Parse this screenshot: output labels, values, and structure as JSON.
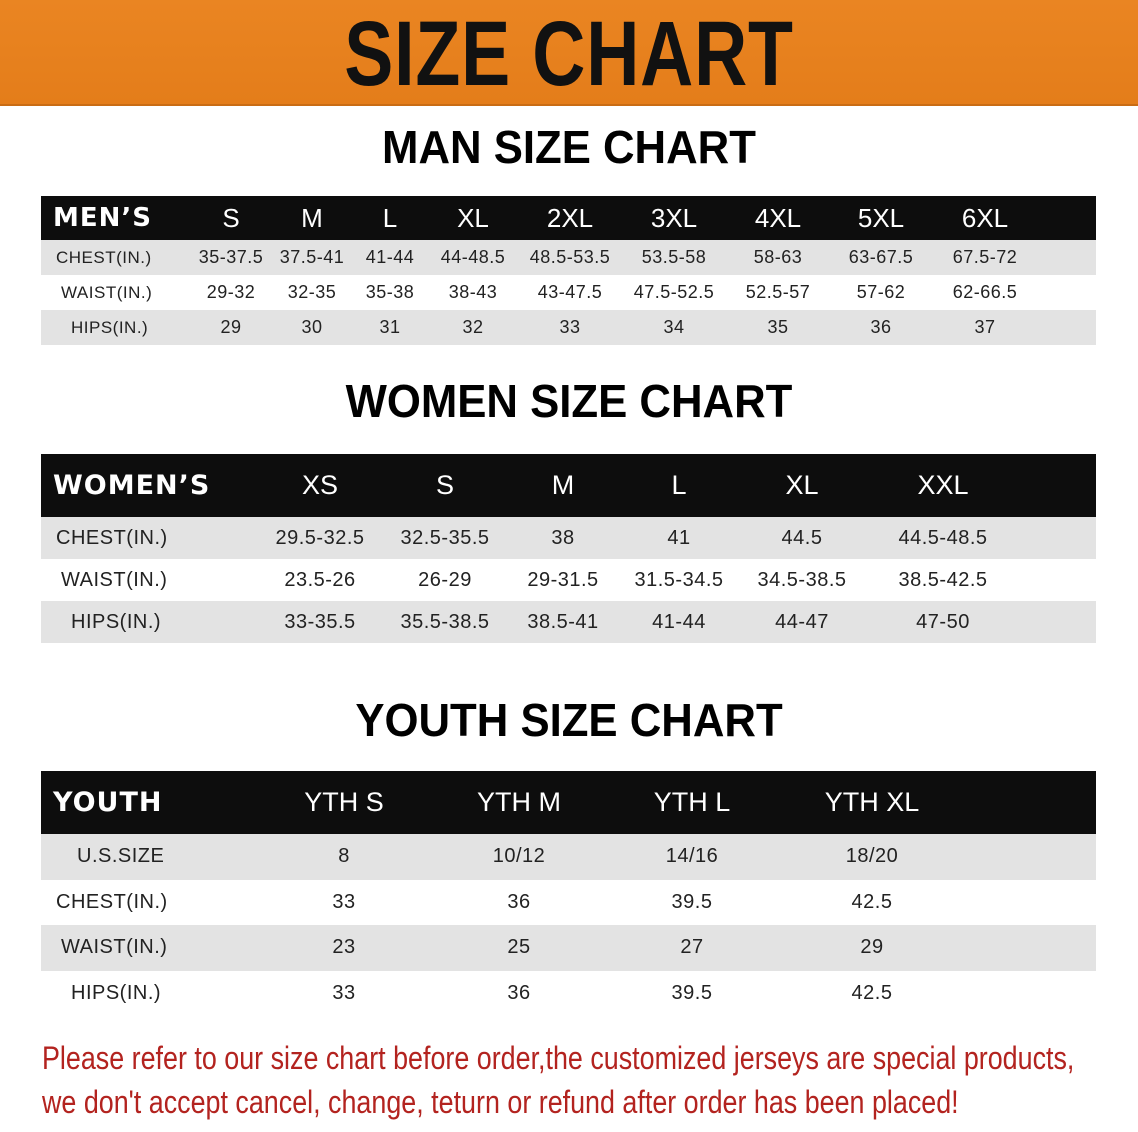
{
  "banner": {
    "title": "SIZE CHART",
    "color": "#E8801E"
  },
  "men": {
    "title": "MAN SIZE CHART",
    "header": [
      "MEN’S",
      "S",
      "M",
      "L",
      "XL",
      "2XL",
      "3XL",
      "4XL",
      "5XL",
      "6XL"
    ],
    "rows": [
      [
        "CHEST(IN.)",
        "35-37.5",
        "37.5-41",
        "41-44",
        "44-48.5",
        "48.5-53.5",
        "53.5-58",
        "58-63",
        "63-67.5",
        "67.5-72"
      ],
      [
        "WAIST(IN.)",
        "29-32",
        "32-35",
        "35-38",
        "38-43",
        "43-47.5",
        "47.5-52.5",
        "52.5-57",
        "57-62",
        "62-66.5"
      ],
      [
        "HIPS(IN.)",
        "29",
        "30",
        "31",
        "32",
        "33",
        "34",
        "35",
        "36",
        "37"
      ]
    ]
  },
  "women": {
    "title": "WOMEN SIZE CHART",
    "header": [
      "WOMEN’S",
      "XS",
      "S",
      "M",
      "L",
      "XL",
      "XXL"
    ],
    "rows": [
      [
        "CHEST(IN.)",
        "29.5-32.5",
        "32.5-35.5",
        "38",
        "41",
        "44.5",
        "44.5-48.5"
      ],
      [
        "WAIST(IN.)",
        "23.5-26",
        "26-29",
        "29-31.5",
        "31.5-34.5",
        "34.5-38.5",
        "38.5-42.5"
      ],
      [
        "HIPS(IN.)",
        "33-35.5",
        "35.5-38.5",
        "38.5-41",
        "41-44",
        "44-47",
        "47-50"
      ]
    ]
  },
  "youth": {
    "title": "YOUTH SIZE CHART",
    "header": [
      "YOUTH",
      "YTH S",
      "YTH M",
      "YTH L",
      "YTH XL"
    ],
    "rows": [
      [
        "U.S.SIZE",
        "8",
        "10/12",
        "14/16",
        "18/20"
      ],
      [
        "CHEST(IN.)",
        "33",
        "36",
        "39.5",
        "42.5"
      ],
      [
        "WAIST(IN.)",
        "23",
        "25",
        "27",
        "29"
      ],
      [
        "HIPS(IN.)",
        "33",
        "36",
        "39.5",
        "42.5"
      ]
    ]
  },
  "notice": {
    "line1": "Please refer to our size chart before order,the customized jerseys are special products,",
    "line2": "we don't accept cancel, change, teturn or refund after order has been placed!",
    "color": "#B3231F"
  }
}
